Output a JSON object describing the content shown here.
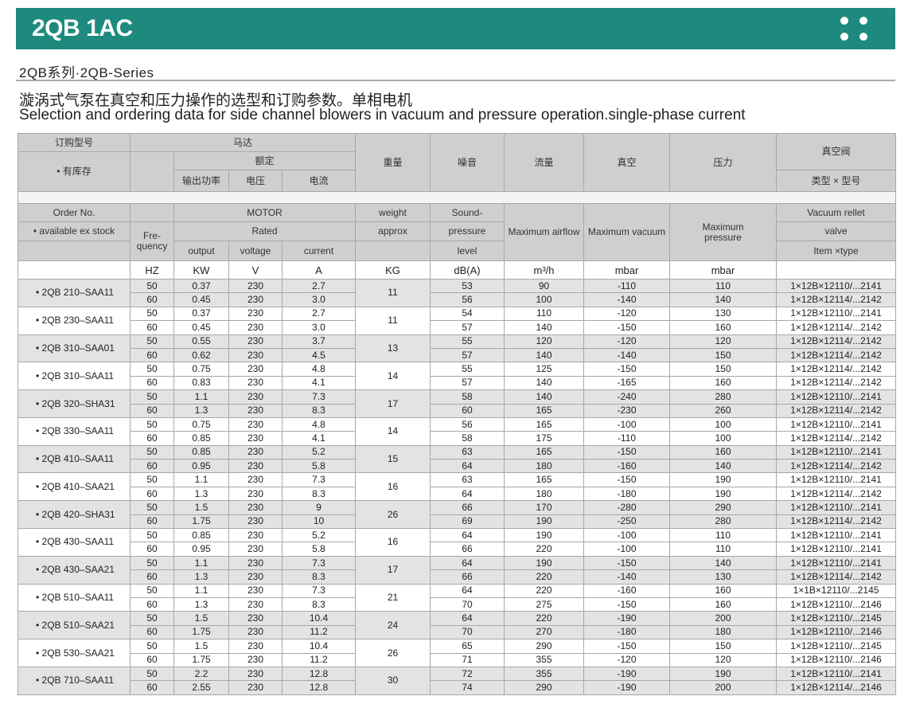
{
  "header": {
    "title": "2QB 1AC"
  },
  "series_label": "2QB系列·2QB-Series",
  "description": {
    "cn": "漩涡式气泵在真空和压力操作的选型和订购参数。单相电机",
    "en": "Selection and ordering data for side channel blowers in vacuum and pressure operation.single-phase current"
  },
  "table": {
    "header_cn": {
      "order_no": "订购型号",
      "in_stock": "• 有库存",
      "motor": "马达",
      "rated": "额定",
      "output": "输出功率",
      "voltage": "电压",
      "current": "电流",
      "weight": "重量",
      "noise": "噪音",
      "airflow": "流量",
      "vacuum": "真空",
      "pressure": "压力",
      "valve": "真空阀",
      "valve_type": "类型 × 型号"
    },
    "header_en": {
      "order_no": "Order No.",
      "in_stock": "• available ex stock",
      "motor": "MOTOR",
      "frequency": "Fre-quency",
      "rated": "Rated",
      "output": "output",
      "voltage": "voltage",
      "current": "current",
      "weight": "weight",
      "approx": "approx",
      "sound_1": "Sound-",
      "sound_2": "pressure",
      "sound_3": "level",
      "airflow": "Maximum airflow",
      "vacuum": "Maximum vacuum",
      "pressure": "Maximum pressure",
      "valve_1": "Vacuum rellet",
      "valve_2": "valve",
      "valve_3": "Item ×type"
    },
    "units": [
      "HZ",
      "KW",
      "V",
      "A",
      "KG",
      "dB(A)",
      "m³/h",
      "mbar",
      "mbar"
    ],
    "models": [
      {
        "order_no": "• 2QB 210–SAA11",
        "weight": "11",
        "rows": [
          [
            "50",
            "0.37",
            "230",
            "2.7",
            "53",
            "90",
            "-110",
            "110",
            "1×12B×12110/...2141"
          ],
          [
            "60",
            "0.45",
            "230",
            "3.0",
            "56",
            "100",
            "-140",
            "140",
            "1×12B×12114/...2142"
          ]
        ]
      },
      {
        "order_no": "• 2QB 230–SAA11",
        "weight": "11",
        "rows": [
          [
            "50",
            "0.37",
            "230",
            "2.7",
            "54",
            "110",
            "-120",
            "130",
            "1×12B×12110/...2141"
          ],
          [
            "60",
            "0.45",
            "230",
            "3.0",
            "57",
            "140",
            "-150",
            "160",
            "1×12B×12114/...2142"
          ]
        ]
      },
      {
        "order_no": "• 2QB 310–SAA01",
        "weight": "13",
        "rows": [
          [
            "50",
            "0.55",
            "230",
            "3.7",
            "55",
            "120",
            "-120",
            "120",
            "1×12B×12114/...2142"
          ],
          [
            "60",
            "0.62",
            "230",
            "4.5",
            "57",
            "140",
            "-140",
            "150",
            "1×12B×12114/...2142"
          ]
        ]
      },
      {
        "order_no": "• 2QB 310–SAA11",
        "weight": "14",
        "rows": [
          [
            "50",
            "0.75",
            "230",
            "4.8",
            "55",
            "125",
            "-150",
            "150",
            "1×12B×12114/...2142"
          ],
          [
            "60",
            "0.83",
            "230",
            "4.1",
            "57",
            "140",
            "-165",
            "160",
            "1×12B×12114/...2142"
          ]
        ]
      },
      {
        "order_no": "• 2QB 320–SHA31",
        "weight": "17",
        "rows": [
          [
            "50",
            "1.1",
            "230",
            "7.3",
            "58",
            "140",
            "-240",
            "280",
            "1×12B×12110/...2141"
          ],
          [
            "60",
            "1.3",
            "230",
            "8.3",
            "60",
            "165",
            "-230",
            "260",
            "1×12B×12114/...2142"
          ]
        ]
      },
      {
        "order_no": "• 2QB 330–SAA11",
        "weight": "14",
        "rows": [
          [
            "50",
            "0.75",
            "230",
            "4.8",
            "56",
            "165",
            "-100",
            "100",
            "1×12B×12110/...2141"
          ],
          [
            "60",
            "0.85",
            "230",
            "4.1",
            "58",
            "175",
            "-110",
            "100",
            "1×12B×12114/...2142"
          ]
        ]
      },
      {
        "order_no": "• 2QB 410–SAA11",
        "weight": "15",
        "rows": [
          [
            "50",
            "0.85",
            "230",
            "5.2",
            "63",
            "165",
            "-150",
            "160",
            "1×12B×12110/...2141"
          ],
          [
            "60",
            "0.95",
            "230",
            "5.8",
            "64",
            "180",
            "-160",
            "140",
            "1×12B×12114/...2142"
          ]
        ]
      },
      {
        "order_no": "• 2QB 410–SAA21",
        "weight": "16",
        "rows": [
          [
            "50",
            "1.1",
            "230",
            "7.3",
            "63",
            "165",
            "-150",
            "190",
            "1×12B×12110/...2141"
          ],
          [
            "60",
            "1.3",
            "230",
            "8.3",
            "64",
            "180",
            "-180",
            "190",
            "1×12B×12114/...2142"
          ]
        ]
      },
      {
        "order_no": "• 2QB 420–SHA31",
        "weight": "26",
        "rows": [
          [
            "50",
            "1.5",
            "230",
            "9",
            "66",
            "170",
            "-280",
            "290",
            "1×12B×12110/...2141"
          ],
          [
            "60",
            "1.75",
            "230",
            "10",
            "69",
            "190",
            "-250",
            "280",
            "1×12B×12114/...2142"
          ]
        ]
      },
      {
        "order_no": "• 2QB 430–SAA11",
        "weight": "16",
        "rows": [
          [
            "50",
            "0.85",
            "230",
            "5.2",
            "64",
            "190",
            "-100",
            "110",
            "1×12B×12110/...2141"
          ],
          [
            "60",
            "0.95",
            "230",
            "5.8",
            "66",
            "220",
            "-100",
            "110",
            "1×12B×12110/...2141"
          ]
        ]
      },
      {
        "order_no": "• 2QB 430–SAA21",
        "weight": "17",
        "rows": [
          [
            "50",
            "1.1",
            "230",
            "7.3",
            "64",
            "190",
            "-150",
            "140",
            "1×12B×12110/...2141"
          ],
          [
            "60",
            "1.3",
            "230",
            "8.3",
            "66",
            "220",
            "-140",
            "130",
            "1×12B×12114/...2142"
          ]
        ]
      },
      {
        "order_no": "• 2QB 510–SAA11",
        "weight": "21",
        "rows": [
          [
            "50",
            "1.1",
            "230",
            "7.3",
            "64",
            "220",
            "-160",
            "160",
            "1×1B×12110/...2145"
          ],
          [
            "60",
            "1.3",
            "230",
            "8.3",
            "70",
            "275",
            "-150",
            "160",
            "1×12B×12110/...2146"
          ]
        ]
      },
      {
        "order_no": "• 2QB 510–SAA21",
        "weight": "24",
        "rows": [
          [
            "50",
            "1.5",
            "230",
            "10.4",
            "64",
            "220",
            "-190",
            "200",
            "1×12B×12110/...2145"
          ],
          [
            "60",
            "1.75",
            "230",
            "11.2",
            "70",
            "270",
            "-180",
            "180",
            "1×12B×12110/...2146"
          ]
        ]
      },
      {
        "order_no": "• 2QB 530–SAA21",
        "weight": "26",
        "rows": [
          [
            "50",
            "1.5",
            "230",
            "10.4",
            "65",
            "290",
            "-150",
            "150",
            "1×12B×12110/...2145"
          ],
          [
            "60",
            "1.75",
            "230",
            "11.2",
            "71",
            "355",
            "-120",
            "120",
            "1×12B×12110/...2146"
          ]
        ]
      },
      {
        "order_no": "• 2QB 710–SAA11",
        "weight": "30",
        "rows": [
          [
            "50",
            "2.2",
            "230",
            "12.8",
            "72",
            "355",
            "-190",
            "190",
            "1×12B×12110/...2141"
          ],
          [
            "60",
            "2.55",
            "230",
            "12.8",
            "74",
            "290",
            "-190",
            "200",
            "1×12B×12114/...2146"
          ]
        ]
      }
    ]
  }
}
